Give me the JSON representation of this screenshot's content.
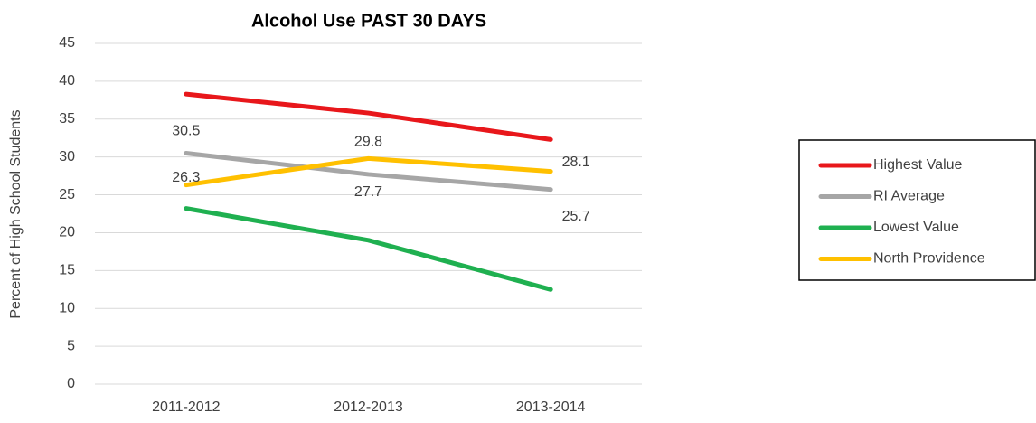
{
  "chart_data": {
    "type": "line",
    "title": "Alcohol Use PAST 30 DAYS",
    "y_label": "Percent of High School Students",
    "categories": [
      "2011-2012",
      "2012-2013",
      "2013-2014"
    ],
    "series": [
      {
        "name": "Highest Value",
        "color": "#e8171b",
        "values": [
          38.3,
          35.8,
          32.3
        ],
        "data_labels": false
      },
      {
        "name": "RI Average",
        "color": "#a6a6a6",
        "values": [
          30.5,
          27.7,
          25.7
        ],
        "data_labels": true
      },
      {
        "name": "Lowest Value",
        "color": "#1fb050",
        "values": [
          23.2,
          19.0,
          12.5
        ],
        "data_labels": false
      },
      {
        "name": "North Providence",
        "color": "#ffc000",
        "values": [
          26.3,
          29.8,
          28.1
        ],
        "data_labels": true
      }
    ],
    "ylim": [
      0,
      45
    ],
    "yticks": [
      0,
      5,
      10,
      15,
      20,
      25,
      30,
      35,
      40,
      45
    ],
    "grid": true,
    "legend": "right"
  }
}
